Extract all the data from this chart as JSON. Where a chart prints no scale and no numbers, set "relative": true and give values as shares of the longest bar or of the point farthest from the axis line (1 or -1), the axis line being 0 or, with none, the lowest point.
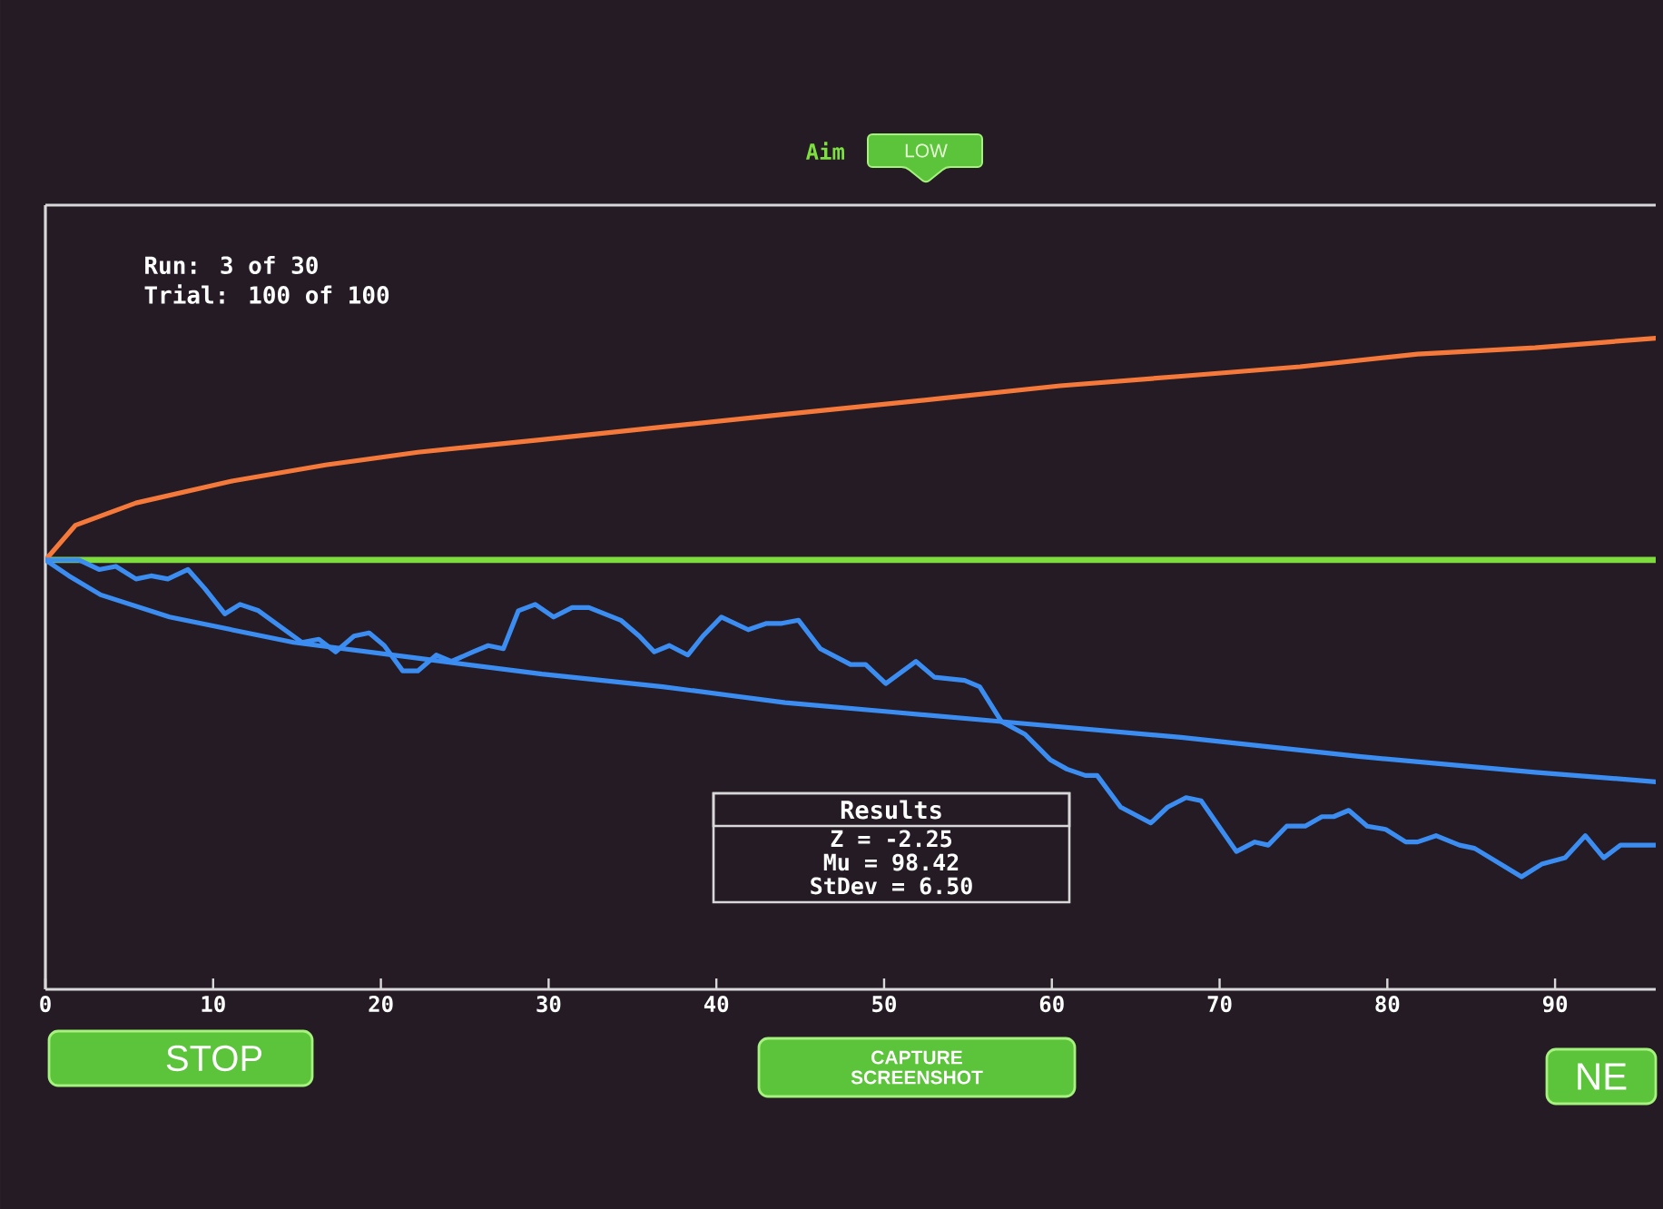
{
  "chart_data": {
    "type": "line",
    "title": "Aim",
    "subtitle": "LOW",
    "relative": true,
    "tick_labels": "x",
    "xlim": [
      0,
      96
    ],
    "xticks": [
      0,
      10,
      20,
      30,
      40,
      50,
      60,
      70,
      80,
      90
    ],
    "ref_lines": [
      {
        "axis": "y",
        "value": 0,
        "color": "#7fdc3f"
      }
    ],
    "series": [
      {
        "color": "#f5793a",
        "x": [
          0,
          1.8,
          5.4,
          11.2,
          16.7,
          22.2,
          29.6,
          36.8,
          44.1,
          53.4,
          60.5,
          67.7,
          74.8,
          81.8,
          88.8,
          96
        ],
        "values": [
          0,
          0.11,
          0.18,
          0.25,
          0.3,
          0.34,
          0.38,
          0.42,
          0.46,
          0.51,
          0.55,
          0.58,
          0.61,
          0.65,
          0.67,
          0.7
        ]
      },
      {
        "color": "#3b8df2",
        "x": [
          0,
          1.4,
          3.3,
          7.4,
          14.8,
          22.2,
          29.6,
          36.8,
          44.1,
          50.5,
          57.0,
          67.7,
          78.3,
          88.8,
          96
        ],
        "values": [
          0,
          -0.05,
          -0.11,
          -0.18,
          -0.26,
          -0.31,
          -0.36,
          -0.4,
          -0.45,
          -0.48,
          -0.51,
          -0.56,
          -0.62,
          -0.67,
          -0.7
        ]
      },
      {
        "color": "#3b8df2",
        "x": [
          0,
          2,
          3.2,
          4.2,
          5.4,
          6.3,
          7.3,
          8.5,
          9.5,
          10.7,
          11.6,
          12.7,
          14,
          15.3,
          16.3,
          17.3,
          18.4,
          19.3,
          20.2,
          21.3,
          22.2,
          23.3,
          24.2,
          25.5,
          26.4,
          27.3,
          28.2,
          29.2,
          30.3,
          31.4,
          32.4,
          34.3,
          35.4,
          36.3,
          37.2,
          38.3,
          39.2,
          40.3,
          41.9,
          43,
          43.9,
          44.9,
          46.2,
          48,
          48.9,
          50.1,
          51.9,
          53,
          54.8,
          55.7,
          57,
          58.4,
          59.9,
          60.9,
          62,
          62.7,
          64.1,
          65.9,
          66.9,
          68,
          68.9,
          71,
          72.1,
          72.9,
          74,
          75.1,
          76.1,
          76.8,
          77.7,
          78.8,
          79.9,
          81.1,
          81.8,
          82.9,
          84.3,
          85.2,
          88,
          89.2,
          90.6,
          91.8,
          92.9,
          93.9,
          96
        ],
        "values": [
          0,
          0,
          -0.03,
          -0.02,
          -0.06,
          -0.05,
          -0.06,
          -0.03,
          -0.09,
          -0.17,
          -0.14,
          -0.16,
          -0.21,
          -0.26,
          -0.25,
          -0.29,
          -0.24,
          -0.23,
          -0.27,
          -0.35,
          -0.35,
          -0.3,
          -0.32,
          -0.29,
          -0.27,
          -0.28,
          -0.16,
          -0.14,
          -0.18,
          -0.15,
          -0.15,
          -0.19,
          -0.24,
          -0.29,
          -0.27,
          -0.3,
          -0.24,
          -0.18,
          -0.22,
          -0.2,
          -0.2,
          -0.19,
          -0.28,
          -0.33,
          -0.33,
          -0.39,
          -0.32,
          -0.37,
          -0.38,
          -0.4,
          -0.51,
          -0.55,
          -0.63,
          -0.66,
          -0.68,
          -0.68,
          -0.78,
          -0.83,
          -0.78,
          -0.75,
          -0.76,
          -0.92,
          -0.89,
          -0.9,
          -0.84,
          -0.84,
          -0.81,
          -0.81,
          -0.79,
          -0.84,
          -0.85,
          -0.89,
          -0.89,
          -0.87,
          -0.9,
          -0.91,
          -1,
          -0.96,
          -0.94,
          -0.87,
          -0.94,
          -0.9,
          -0.9
        ]
      }
    ],
    "annotations": [
      "Run: 3 of 30",
      "Trial: 100 of 100",
      "Results",
      "Z = -2.25",
      "Mu = 98.42",
      "StDev = 6.50",
      "STOP",
      "CAPTURE SCREENSHOT",
      "NE"
    ]
  }
}
